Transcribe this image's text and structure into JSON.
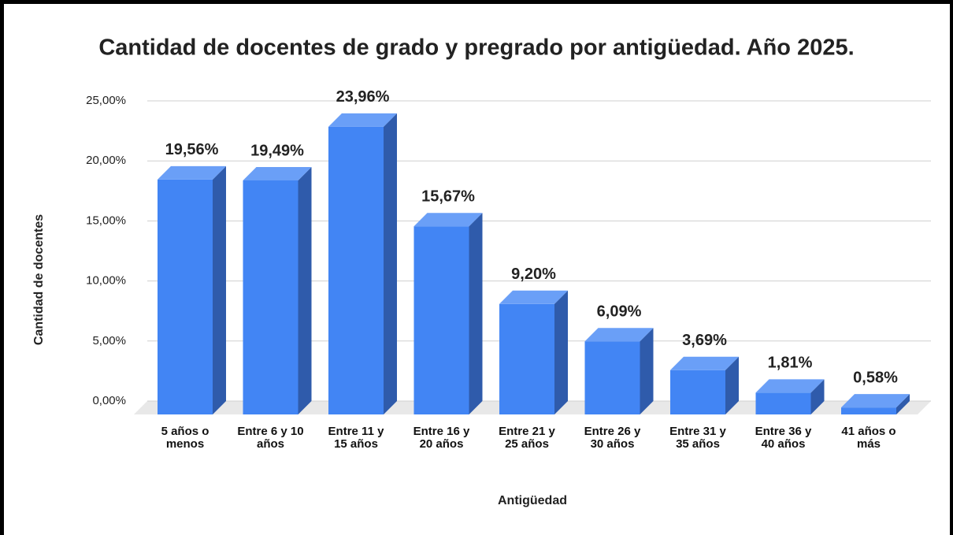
{
  "chart_data": {
    "type": "bar3d",
    "title": "Cantidad de docentes de grado y pregrado por antigüedad. Año 2025.",
    "x_label": "Antigüedad",
    "y_label": "Cantidad de docentes",
    "categories": [
      "5 años o menos",
      "Entre 6 y 10 años",
      "Entre 11 y 15 años",
      "Entre 16 y 20 años",
      "Entre 21 y 25 años",
      "Entre 26 y 30 años",
      "Entre 31 y 35 años",
      "Entre 36 y 40 años",
      "41 años o más"
    ],
    "values": [
      19.56,
      19.49,
      23.96,
      15.67,
      9.2,
      6.09,
      3.69,
      1.81,
      0.58
    ],
    "value_labels": [
      "19,56%",
      "19,49%",
      "23,96%",
      "15,67%",
      "9,20%",
      "6,09%",
      "3,69%",
      "1,81%",
      "0,58%"
    ],
    "color": "#4285f4",
    "ylim": [
      0,
      25
    ],
    "yticks": [
      {
        "value": 0,
        "label": "0,00%"
      },
      {
        "value": 5,
        "label": "5,00%"
      },
      {
        "value": 10,
        "label": "10,00%"
      },
      {
        "value": 15,
        "label": "15,00%"
      },
      {
        "value": 20,
        "label": "20,00%"
      },
      {
        "value": 25,
        "label": "25,00%"
      }
    ],
    "grid": true
  }
}
